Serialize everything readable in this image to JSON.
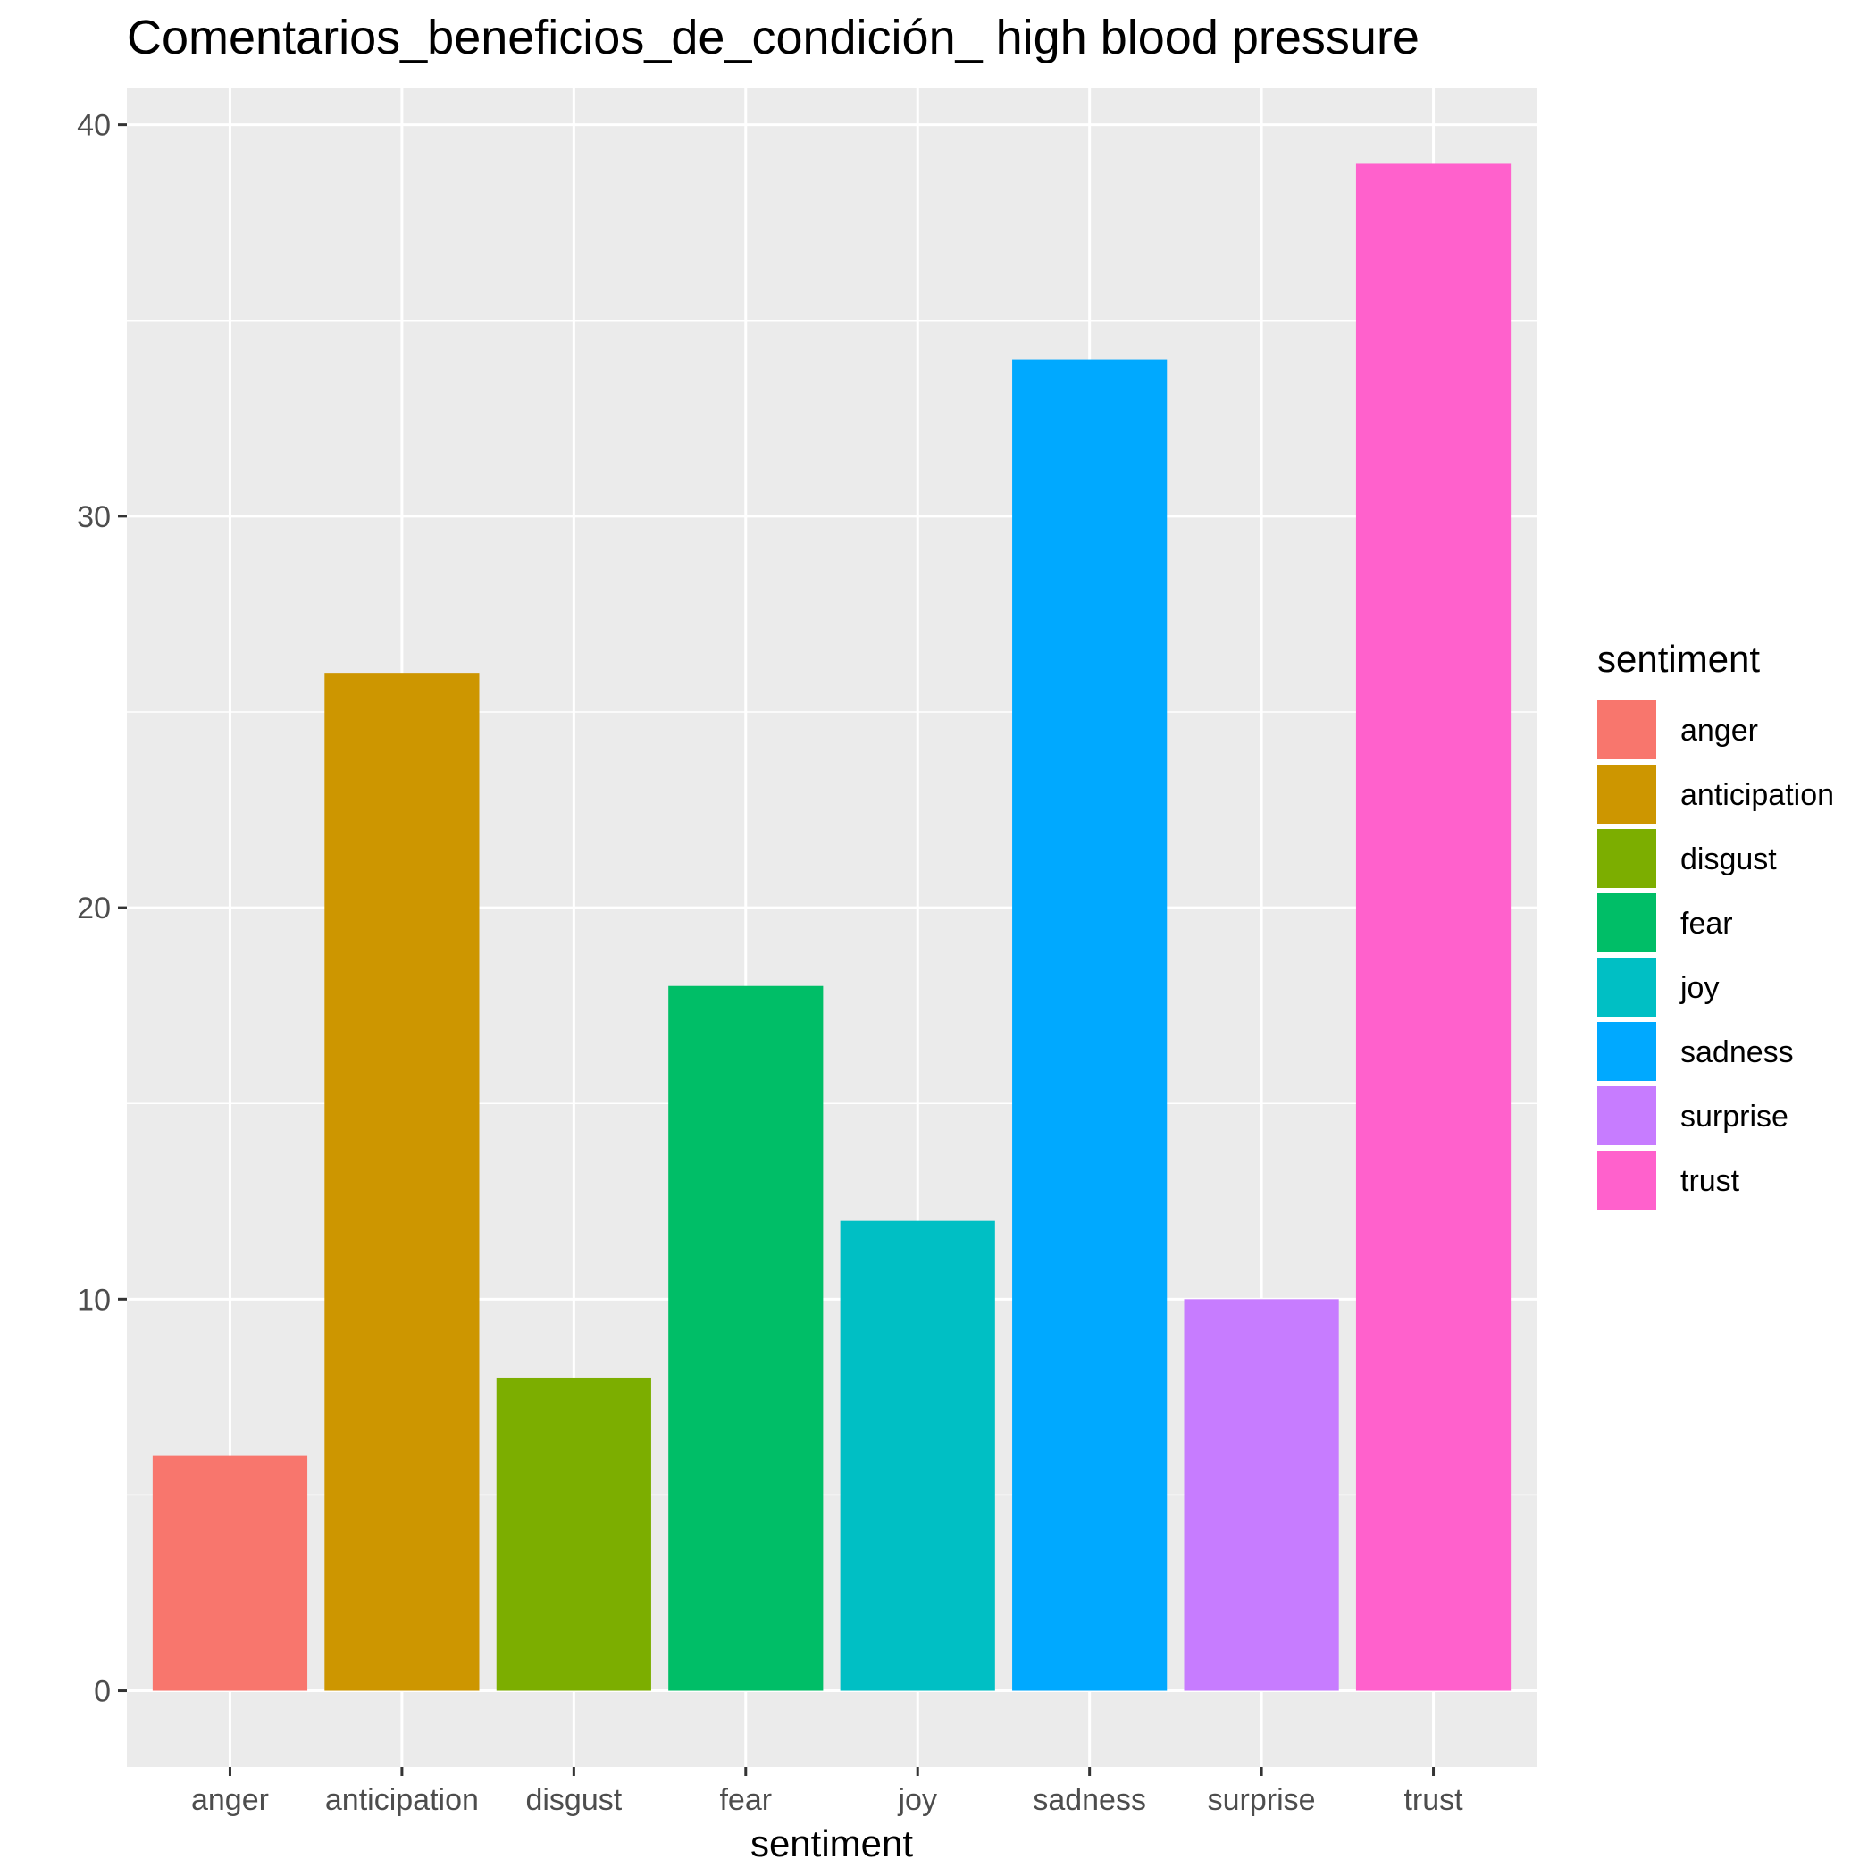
{
  "chart_data": {
    "type": "bar",
    "title": "Comentarios_beneficios_de_condición_ high blood pressure",
    "xlabel": "sentiment",
    "ylabel": "",
    "categories": [
      "anger",
      "anticipation",
      "disgust",
      "fear",
      "joy",
      "sadness",
      "surprise",
      "trust"
    ],
    "values": [
      6,
      26,
      8,
      18,
      12,
      34,
      10,
      39
    ],
    "colors": [
      "#F8766D",
      "#CD9600",
      "#7CAE00",
      "#00BE67",
      "#00BFC4",
      "#00A9FF",
      "#C77CFF",
      "#FF61CC"
    ],
    "yticks": [
      "0",
      "10",
      "20",
      "30",
      "40"
    ],
    "ylim": [
      -1.95,
      40.95
    ],
    "grid": true,
    "legend": {
      "title": "sentiment",
      "placement": "right",
      "items": [
        "anger",
        "anticipation",
        "disgust",
        "fear",
        "joy",
        "sadness",
        "surprise",
        "trust"
      ]
    },
    "panel_background": "#EBEBEB",
    "grid_color": "#FFFFFF"
  }
}
